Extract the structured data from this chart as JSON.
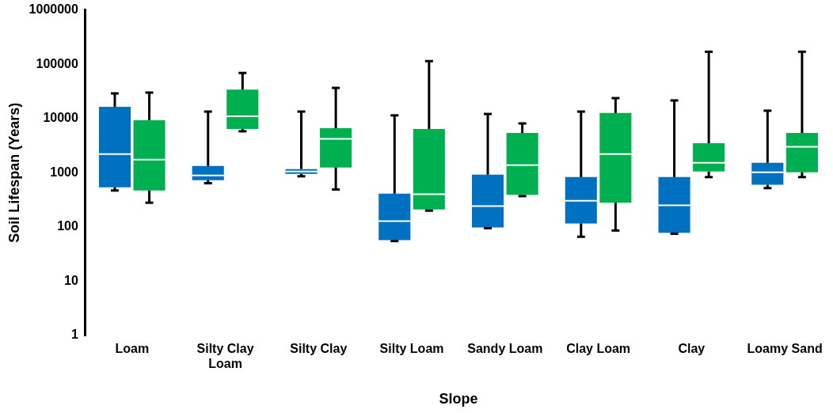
{
  "chart_data": {
    "type": "box",
    "xlabel": "Slope",
    "ylabel": "Soil Lifespan (Years)",
    "categories": [
      "Loam",
      "Silty Clay Loam",
      "Silty Clay",
      "Silty Loam",
      "Sandy Loam",
      "Clay Loam",
      "Clay",
      "Loamy Sand"
    ],
    "series": [
      {
        "color": "#0070c0",
        "boxes": [
          {
            "low": 470,
            "q1": 540,
            "median": 2200,
            "q3": 16400,
            "high": 29000
          },
          {
            "low": 640,
            "q1": 730,
            "median": 890,
            "q3": 1330,
            "high": 13400
          },
          {
            "low": 860,
            "q1": 950,
            "median": 1050,
            "q3": 1170,
            "high": 13400
          },
          {
            "low": 55,
            "q1": 57,
            "median": 128,
            "q3": 410,
            "high": 11400
          },
          {
            "low": 95,
            "q1": 98,
            "median": 242,
            "q3": 920,
            "high": 12100
          },
          {
            "low": 66,
            "q1": 116,
            "median": 305,
            "q3": 830,
            "high": 13400
          },
          {
            "low": 75,
            "q1": 78,
            "median": 250,
            "q3": 830,
            "high": 21500
          },
          {
            "low": 520,
            "q1": 600,
            "median": 1020,
            "q3": 1520,
            "high": 13900
          }
        ]
      },
      {
        "color": "#00b050",
        "boxes": [
          {
            "low": 280,
            "q1": 470,
            "median": 1750,
            "q3": 9300,
            "high": 30000
          },
          {
            "low": 5800,
            "q1": 6400,
            "median": 11000,
            "q3": 34000,
            "high": 69000
          },
          {
            "low": 490,
            "q1": 1250,
            "median": 4200,
            "q3": 6600,
            "high": 36600
          },
          {
            "low": 200,
            "q1": 210,
            "median": 400,
            "q3": 6400,
            "high": 114000
          },
          {
            "low": 370,
            "q1": 390,
            "median": 1380,
            "q3": 5400,
            "high": 8100
          },
          {
            "low": 86,
            "q1": 280,
            "median": 2200,
            "q3": 12600,
            "high": 23700
          },
          {
            "low": 830,
            "q1": 1050,
            "median": 1520,
            "q3": 3500,
            "high": 170000
          },
          {
            "low": 830,
            "q1": 1020,
            "median": 3000,
            "q3": 5400,
            "high": 170000
          }
        ]
      }
    ],
    "ylim": [
      1,
      1000000
    ],
    "yticks": [
      1,
      10,
      100,
      1000,
      10000,
      100000,
      1000000
    ],
    "log": true,
    "grid": false,
    "legend": false
  }
}
